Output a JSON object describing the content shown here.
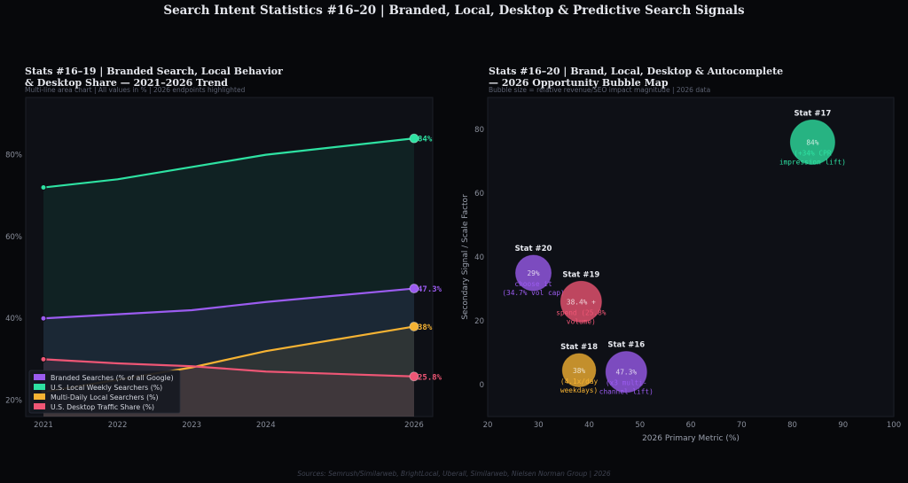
{
  "title": "Search Intent Statistics #16–20  |  Branded, Local, Desktop & Predictive Search Signals",
  "footer": "Sources: Semrush/Similarweb, BrightLocal, Uberall, Similarweb, Nielsen Norman Group  |  2026",
  "colors": {
    "background": "#07080b",
    "panel": "#0e1016",
    "purple": "#9b5cf0",
    "green": "#2ee2a2",
    "orange": "#f6b333",
    "red": "#ef5675"
  },
  "chart_data": [
    {
      "type": "area",
      "title_line1": "Stats #16–19  |  Branded Search, Local Behavior",
      "title_line2": "& Desktop Share — 2021–2026 Trend",
      "subtitle": "Multi-line area chart  |  All values in %  |  2026 endpoints highlighted",
      "x": [
        2021,
        2022,
        2023,
        2024,
        2026
      ],
      "xticks": [
        "2021",
        "2022",
        "2023",
        "2024",
        "2026"
      ],
      "ylim": [
        16,
        94
      ],
      "yticks": [
        "20%",
        "40%",
        "60%",
        "80%"
      ],
      "ytick_values": [
        20,
        40,
        60,
        80
      ],
      "grid": false,
      "legend_position": "lower-left",
      "series": [
        {
          "name": "Branded Searches (% of all Google)",
          "color": "#9b5cf0",
          "values": [
            40,
            41,
            42,
            44,
            47.3
          ],
          "end_label": "47.3%"
        },
        {
          "name": "U.S. Local Weekly Searchers (%)",
          "color": "#2ee2a2",
          "values": [
            72,
            74,
            77,
            80,
            84
          ],
          "end_label": "84%"
        },
        {
          "name": "Multi-Daily Local Searchers (%)",
          "color": "#f6b333",
          "values": [
            22,
            25,
            28,
            32,
            38
          ],
          "end_label": "38%"
        },
        {
          "name": "U.S. Desktop Traffic Share (%)",
          "color": "#ef5675",
          "values": [
            30,
            29,
            28.3,
            27,
            25.8
          ],
          "end_label": "25.8%"
        }
      ]
    },
    {
      "type": "scatter",
      "title_line1": "Stats #16–20  |  Brand, Local, Desktop & Autocomplete",
      "title_line2": "— 2026 Opportunity Bubble Map",
      "subtitle": "Bubble size = relative revenue/SEO impact magnitude  |  2026 data",
      "xlabel": "2026 Primary Metric (%)",
      "ylabel": "Secondary Signal / Scale Factor",
      "xlim": [
        20,
        100
      ],
      "ylim": [
        -10,
        90
      ],
      "xticks": [
        "20",
        "30",
        "40",
        "50",
        "60",
        "70",
        "80",
        "90",
        "100"
      ],
      "xtick_values": [
        20,
        30,
        40,
        50,
        60,
        70,
        80,
        90,
        100
      ],
      "yticks": [
        "0",
        "20",
        "40",
        "60",
        "80"
      ],
      "ytick_values": [
        0,
        20,
        40,
        60,
        80
      ],
      "points": [
        {
          "label": "Stat #17",
          "x": 84,
          "y": 76,
          "size": 1.0,
          "color": "#2ee2a2",
          "value_text": "84%",
          "note_line1": "(+34% CPR",
          "note_line2": "impression lift)"
        },
        {
          "label": "Stat #20",
          "x": 29,
          "y": 35,
          "size": 0.8,
          "color": "#9b5cf0",
          "value_text": "29%",
          "note_line1": "choose it",
          "note_line2": "(34.7% vol cap)"
        },
        {
          "label": "Stat #19",
          "x": 38.4,
          "y": 26,
          "size": 0.92,
          "color": "#ef5675",
          "value_text": "38.4% +",
          "note_line1": "spend (25.8%",
          "note_line2": "volume)"
        },
        {
          "label": "Stat #18",
          "x": 38,
          "y": 4.5,
          "size": 0.75,
          "color": "#f6b333",
          "value_text": "38%",
          "note_line1": "(4.1x/day",
          "note_line2": "weekdays)"
        },
        {
          "label": "Stat #16",
          "x": 47.3,
          "y": 4,
          "size": 0.92,
          "color": "#9b5cf0",
          "value_text": "47.3%",
          "note_line1": "(x3 multi-",
          "note_line2": "channel lift)"
        }
      ]
    }
  ]
}
